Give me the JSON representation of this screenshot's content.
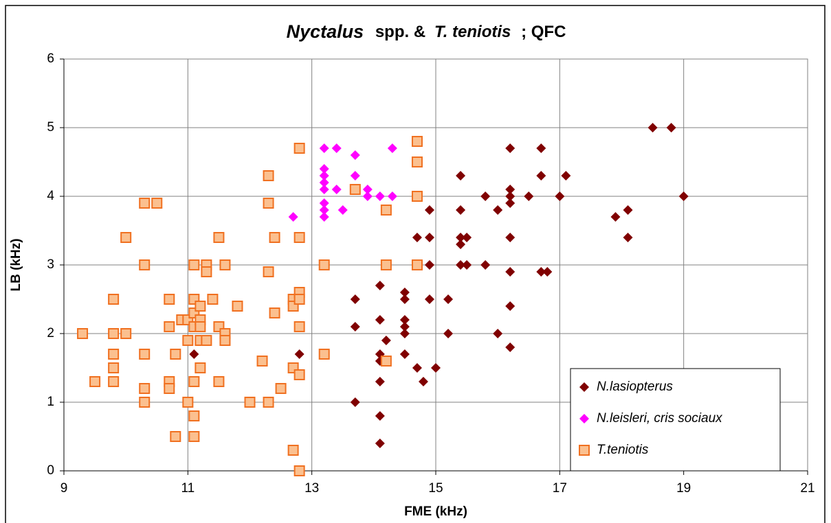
{
  "chart_data": {
    "type": "scatter",
    "title_parts": [
      "Nyctalus",
      "spp. &",
      "T. teniotis",
      "; QFC"
    ],
    "xlabel": "FME (kHz)",
    "ylabel": "LB (kHz)",
    "xlim": [
      9,
      21
    ],
    "xticks": [
      9,
      11,
      13,
      15,
      17,
      19,
      21
    ],
    "ylim": [
      0,
      6
    ],
    "yticks": [
      0,
      1,
      2,
      3,
      4,
      5,
      6
    ],
    "grid": true,
    "legend": "lower right",
    "series": [
      {
        "name": "N.lasiopterus",
        "color": "#800000",
        "marker": "diamond",
        "x": [
          18.5,
          18.8,
          19.0,
          17.9,
          18.1,
          18.1,
          17.1,
          17.0,
          16.7,
          16.7,
          16.7,
          16.8,
          16.2,
          16.2,
          16.2,
          16.2,
          16.5,
          16.2,
          16.2,
          16.2,
          16.2,
          15.8,
          16.0,
          15.8,
          16.0,
          15.4,
          15.4,
          15.4,
          15.4,
          15.5,
          15.4,
          15.5,
          14.7,
          14.9,
          14.9,
          14.9,
          14.9,
          15.2,
          15.2,
          14.5,
          14.5,
          14.5,
          14.5,
          14.5,
          14.5,
          14.7,
          15.0,
          14.8,
          14.1,
          14.1,
          14.2,
          14.1,
          14.1,
          14.1,
          14.1,
          14.1,
          13.7,
          13.7,
          13.7,
          12.8,
          11.1
        ],
        "y": [
          5,
          5,
          4,
          3.7,
          3.8,
          3.4,
          4.3,
          4.0,
          4.7,
          4.3,
          2.9,
          2.9,
          4.7,
          4.1,
          4.0,
          3.9,
          4.0,
          3.4,
          2.9,
          2.4,
          1.8,
          4.0,
          3.8,
          3.0,
          2.0,
          4.3,
          3.8,
          3.4,
          3.3,
          3.4,
          3.0,
          3.0,
          3.4,
          3.4,
          3.8,
          3.0,
          2.5,
          2.5,
          2.0,
          2.6,
          2.5,
          2.2,
          2.1,
          2.0,
          1.7,
          1.5,
          1.5,
          1.3,
          2.7,
          2.2,
          1.9,
          1.7,
          1.6,
          1.3,
          0.8,
          0.4,
          2.5,
          2.1,
          1.0,
          1.7,
          1.7
        ]
      },
      {
        "name": "N.leisleri, cris sociaux",
        "color": "#ff00ff",
        "marker": "diamond",
        "x": [
          13.2,
          13.4,
          14.3,
          13.7,
          13.2,
          13.2,
          13.7,
          13.2,
          13.2,
          13.4,
          13.2,
          13.2,
          13.2,
          13.5,
          13.9,
          13.9,
          14.1,
          14.3,
          12.7
        ],
        "y": [
          4.7,
          4.7,
          4.7,
          4.6,
          4.4,
          4.3,
          4.3,
          4.2,
          4.1,
          4.1,
          3.9,
          3.8,
          3.7,
          3.8,
          4.1,
          4.0,
          4.0,
          4.0,
          3.7
        ]
      },
      {
        "name": "T.teniotis",
        "color": "#fbc08f",
        "edgecolor": "#f07020",
        "marker": "square",
        "x": [
          9.3,
          9.5,
          9.8,
          9.8,
          9.8,
          9.8,
          9.8,
          10.0,
          10.0,
          10.3,
          10.5,
          10.3,
          10.3,
          10.3,
          10.3,
          10.7,
          10.7,
          10.7,
          10.7,
          10.8,
          10.8,
          10.9,
          11.0,
          11.0,
          11.0,
          11.1,
          11.1,
          11.1,
          11.1,
          11.1,
          11.1,
          11.1,
          11.2,
          11.2,
          11.2,
          11.2,
          11.2,
          11.3,
          11.3,
          11.3,
          11.4,
          11.5,
          11.5,
          11.5,
          11.6,
          11.6,
          11.6,
          11.8,
          12.0,
          12.2,
          12.3,
          12.3,
          12.3,
          12.3,
          12.4,
          12.4,
          12.5,
          12.7,
          12.7,
          12.7,
          12.7,
          12.8,
          12.8,
          12.8,
          12.8,
          12.8,
          12.8,
          12.8,
          13.2,
          13.2,
          13.7,
          14.2,
          14.2,
          14.2,
          14.7,
          14.7,
          14.7,
          14.7
        ],
        "y": [
          2.0,
          1.3,
          2.5,
          2.0,
          1.7,
          1.5,
          1.3,
          2.0,
          3.4,
          3.9,
          3.9,
          3.0,
          1.7,
          1.2,
          1.0,
          2.5,
          2.1,
          1.3,
          1.2,
          1.7,
          0.5,
          2.2,
          2.2,
          1.9,
          1.0,
          3.0,
          2.5,
          2.3,
          2.1,
          1.3,
          0.8,
          0.5,
          2.4,
          2.2,
          2.1,
          1.9,
          1.5,
          3.0,
          2.9,
          1.9,
          2.5,
          3.4,
          2.1,
          1.3,
          3.0,
          2.0,
          1.9,
          2.4,
          1.0,
          1.6,
          4.3,
          3.9,
          2.9,
          1.0,
          3.4,
          2.3,
          1.2,
          2.5,
          2.4,
          1.5,
          0.3,
          4.7,
          3.4,
          2.6,
          2.5,
          2.1,
          1.4,
          0,
          3.0,
          1.7,
          4.1,
          3.8,
          3.0,
          1.6,
          4.8,
          4.5,
          4.0,
          3.0
        ]
      }
    ]
  }
}
